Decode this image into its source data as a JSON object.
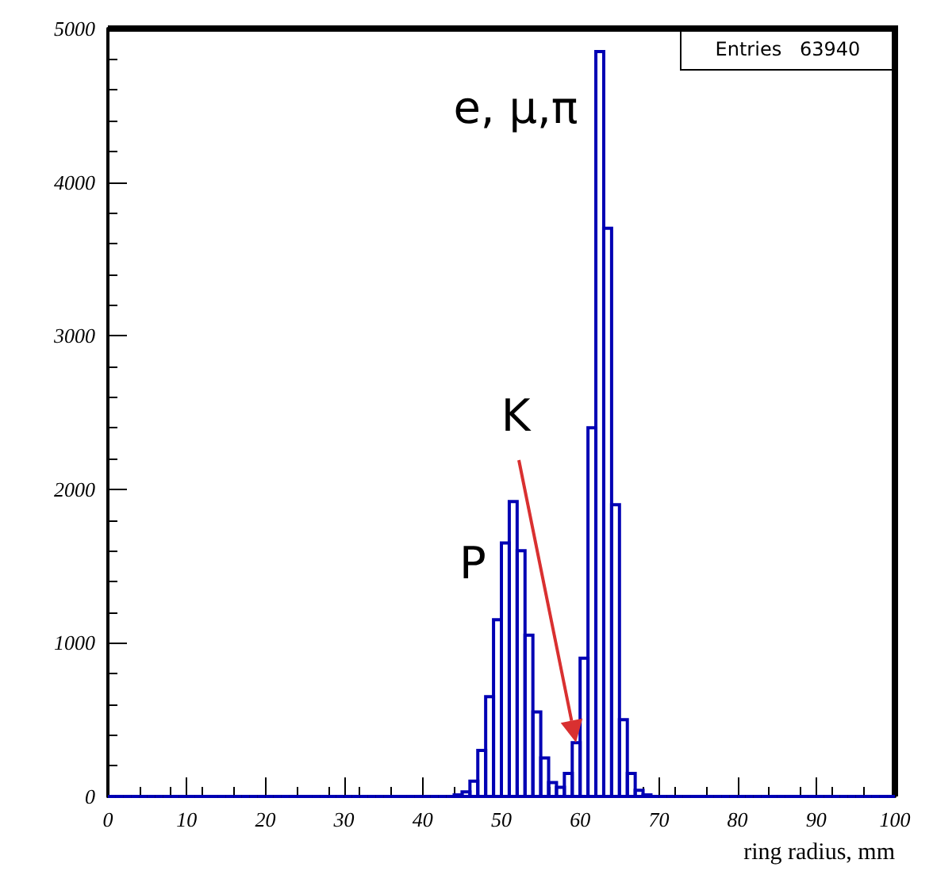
{
  "chart_data": {
    "type": "histogram",
    "xlabel": "ring radius, mm",
    "bins": [
      0,
      1,
      2,
      3,
      4,
      5,
      6,
      7,
      8,
      9,
      10,
      11,
      12,
      13,
      14,
      15,
      16,
      17,
      18,
      19,
      20,
      21,
      22,
      23,
      24,
      25,
      26,
      27,
      28,
      29,
      30,
      31,
      32,
      33,
      34,
      35,
      36,
      37,
      38,
      39,
      40,
      41,
      42,
      43,
      44,
      45,
      46,
      47,
      48,
      49,
      50,
      51,
      52,
      53,
      54,
      55,
      56,
      57,
      58,
      59,
      60,
      61,
      62,
      63,
      64,
      65,
      66,
      67,
      68,
      69,
      70,
      71,
      72,
      73,
      74,
      75,
      76,
      77,
      78,
      79,
      80,
      81,
      82,
      83,
      84,
      85,
      86,
      87,
      88,
      89,
      90,
      91,
      92,
      93,
      94,
      95,
      96,
      97,
      98,
      99,
      100
    ],
    "values": [
      0,
      0,
      0,
      0,
      0,
      0,
      0,
      0,
      0,
      0,
      0,
      0,
      0,
      0,
      0,
      0,
      0,
      0,
      0,
      0,
      0,
      0,
      0,
      0,
      0,
      0,
      0,
      0,
      0,
      0,
      0,
      0,
      0,
      0,
      0,
      0,
      0,
      0,
      0,
      0,
      0,
      0,
      0,
      0,
      10,
      30,
      100,
      300,
      650,
      1150,
      1650,
      1920,
      1600,
      1050,
      550,
      250,
      90,
      60,
      150,
      350,
      900,
      2400,
      4850,
      3700,
      1900,
      500,
      150,
      40,
      10,
      0,
      0,
      0,
      0,
      0,
      0,
      0,
      0,
      0,
      0,
      0,
      0,
      0,
      0,
      0,
      0,
      0,
      0,
      0,
      0,
      0,
      0,
      0,
      0,
      0,
      0,
      0,
      0,
      0,
      0,
      0
    ],
    "color": "#0000b4",
    "xlim": [
      0,
      100
    ],
    "xticks": [
      0,
      10,
      20,
      30,
      40,
      50,
      60,
      70,
      80,
      90,
      100
    ],
    "ylim": [
      0,
      5000
    ],
    "yticks": [
      0,
      1000,
      2000,
      3000,
      4000,
      5000
    ],
    "grid": false,
    "annotations": [
      "Entries   63940",
      "e, μ,π",
      "K",
      "P"
    ]
  }
}
